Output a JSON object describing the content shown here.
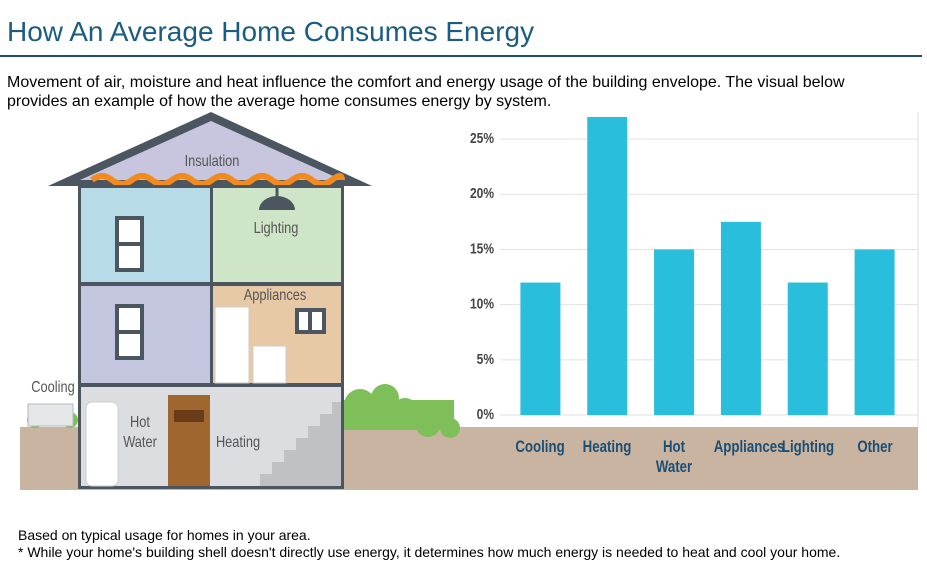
{
  "header": {
    "title": "How An Average Home Consumes Energy"
  },
  "intro": "Movement of air, moisture and heat influence the comfort and energy usage of the building envelope. The visual below provides an example of how the average home consumes energy by system.",
  "illustration": {
    "labels": [
      "Insulation",
      "Lighting",
      "Appliances",
      "Cooling",
      "Hot Water",
      "Heating"
    ]
  },
  "chart_data": {
    "type": "bar",
    "categories": [
      "Cooling",
      "Heating",
      "Hot Water",
      "Appliances",
      "Lighting",
      "Other"
    ],
    "values": [
      12,
      27,
      15,
      17.5,
      12,
      15
    ],
    "color": "#29bedb",
    "ylim": [
      0,
      27
    ],
    "yticks": [
      {
        "value": 0,
        "label": "0%"
      },
      {
        "value": 5,
        "label": "5%"
      },
      {
        "value": 10,
        "label": "10%"
      },
      {
        "value": 15,
        "label": "15%"
      },
      {
        "value": 20,
        "label": "20%"
      },
      {
        "value": 25,
        "label": "25%"
      }
    ],
    "grid": true
  },
  "footnotes": [
    "Based on typical usage for homes in your area.",
    "* While your home's building shell doesn't directly use energy, it determines how much energy is needed to heat and cool your home."
  ]
}
